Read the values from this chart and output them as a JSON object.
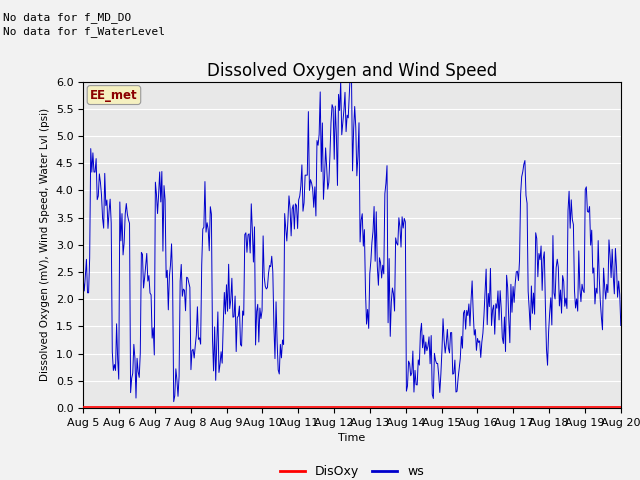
{
  "title": "Dissolved Oxygen and Wind Speed",
  "xlabel": "Time",
  "ylabel": "Dissolved Oxygen (mV), Wind Speed, Water Lvl (psi)",
  "ylim": [
    0.0,
    6.0
  ],
  "yticks": [
    0.0,
    0.5,
    1.0,
    1.5,
    2.0,
    2.5,
    3.0,
    3.5,
    4.0,
    4.5,
    5.0,
    5.5,
    6.0
  ],
  "xtick_labels": [
    "Aug 5",
    "Aug 6",
    "Aug 7",
    "Aug 8",
    "Aug 9",
    "Aug 10",
    "Aug 11",
    "Aug 12",
    "Aug 13",
    "Aug 14",
    "Aug 15",
    "Aug 16",
    "Aug 17",
    "Aug 18",
    "Aug 19",
    "Aug 20"
  ],
  "annotation1": "No data for f_MD_DO",
  "annotation2": "No data for f_WaterLevel",
  "box_label": "EE_met",
  "ws_color": "#0000cc",
  "disoxy_color": "#ff0000",
  "legend_ws": "ws",
  "legend_disoxy": "DisOxy",
  "plot_bg_color": "#e8e8e8",
  "fig_bg_color": "#f2f2f2",
  "title_fontsize": 12,
  "axis_label_fontsize": 8,
  "tick_fontsize": 8,
  "n_points": 500,
  "seed": 42
}
